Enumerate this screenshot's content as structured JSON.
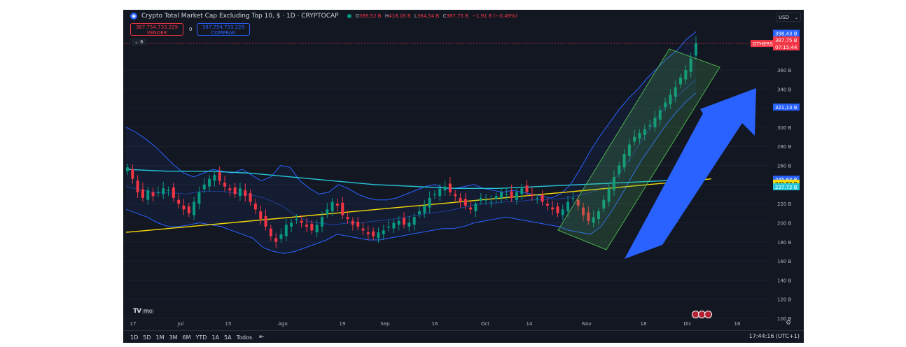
{
  "header": {
    "logo_glyph": "◉",
    "title": "Crypto Total Market Cap Excluding Top 10, $ · 1D · CRYPTOCAP",
    "ohlc": {
      "o_label": "O",
      "o": "389,52 B",
      "h_label": "H",
      "h": "418,16 B",
      "l_label": "L",
      "l": "364,54 B",
      "c_label": "C",
      "c": "387,75 B",
      "change": "−1,91 B (−0,49%)"
    },
    "status_color": "#089981"
  },
  "trade": {
    "sell_price": "387.754.733.229",
    "sell_label": "VENDER",
    "spread": "0",
    "buy_price": "387.754.733.229",
    "buy_label": "COMPRAR"
  },
  "indicators_toggle": {
    "label": "6",
    "icon": "chevron-down-icon"
  },
  "currency": {
    "label": "USD",
    "icon": "chevron-down-icon"
  },
  "chart_data": {
    "type": "line",
    "symbol": "OTHERS",
    "price_axis": {
      "unit": "B",
      "ticks": [
        "360 B",
        "340 B",
        "320 B",
        "300 B",
        "280 B",
        "260 B",
        "240 B",
        "220 B",
        "200 B",
        "180 B",
        "160 B",
        "140 B",
        "120 B",
        "100 B"
      ],
      "tick_values": [
        360,
        340,
        320,
        300,
        280,
        260,
        240,
        220,
        200,
        180,
        160,
        140,
        120,
        100
      ]
    },
    "time_axis": {
      "ticks": [
        "17",
        "Jul",
        "15",
        "Ago",
        "19",
        "Sep",
        "16",
        "Oct",
        "14",
        "Nov",
        "18",
        "Dic",
        "16"
      ]
    },
    "price_labels": [
      {
        "text": "398,43 B",
        "value": 398.43,
        "color": "#2962ff"
      },
      {
        "text": "387,75 B",
        "value": 387.75,
        "color": "#f23645",
        "tag": "OTHERS",
        "countdown": "07:15:44"
      },
      {
        "text": "321,13 B",
        "value": 321.13,
        "color": "#2962ff"
      },
      {
        "text": "245,63 B",
        "value": 245.63,
        "color": "#2962ff"
      },
      {
        "text": "241,52 B",
        "value": 241.52,
        "color": "#f5d90a"
      },
      {
        "text": "237,72 B",
        "value": 237.72,
        "color": "#26c6da"
      }
    ],
    "close_series": [
      258,
      246,
      232,
      226,
      234,
      228,
      232,
      236,
      234,
      226,
      220,
      214,
      210,
      222,
      232,
      240,
      246,
      250,
      244,
      238,
      234,
      230,
      236,
      228,
      222,
      214,
      204,
      196,
      186,
      180,
      188,
      198,
      200,
      204,
      200,
      196,
      192,
      198,
      206,
      214,
      222,
      218,
      208,
      204,
      198,
      196,
      192,
      188,
      186,
      190,
      192,
      196,
      200,
      202,
      198,
      200,
      206,
      212,
      218,
      226,
      230,
      236,
      238,
      232,
      228,
      222,
      218,
      214,
      220,
      226,
      224,
      222,
      228,
      232,
      230,
      226,
      232,
      236,
      232,
      228,
      226,
      222,
      218,
      214,
      210,
      214,
      222,
      226,
      218,
      208,
      202,
      206,
      212,
      224,
      236,
      248,
      260,
      272,
      282,
      290,
      294,
      298,
      302,
      310,
      318,
      326,
      334,
      342,
      352,
      360,
      372,
      388
    ],
    "bb_mid_series": [
      238,
      236,
      234,
      232,
      232,
      231,
      231,
      230,
      232,
      233,
      233,
      233,
      232,
      231,
      230,
      228,
      226,
      222,
      218,
      212,
      206,
      202,
      200,
      199,
      198,
      199,
      200,
      200,
      201,
      202,
      203,
      204,
      205,
      207,
      208,
      210,
      211,
      212,
      214,
      216,
      218,
      220,
      220,
      221,
      222,
      222,
      223,
      224,
      224,
      225,
      225,
      226,
      228,
      230,
      232,
      236,
      242,
      250,
      262,
      276,
      290,
      304,
      316,
      326,
      334,
      342,
      350
    ],
    "bb_upper_series": [
      300,
      295,
      288,
      280,
      270,
      260,
      252,
      248,
      252,
      256,
      254,
      252,
      256,
      250,
      244,
      248,
      260,
      258,
      244,
      236,
      230,
      232,
      240,
      236,
      230,
      226,
      224,
      224,
      226,
      230,
      234,
      238,
      240,
      236,
      236,
      238,
      240,
      236,
      234,
      232,
      234,
      232,
      230,
      228,
      226,
      230,
      240,
      256,
      274,
      290,
      304,
      318,
      330,
      340,
      352,
      362,
      372,
      380,
      392,
      400
    ],
    "bb_lower_series": [
      214,
      210,
      206,
      200,
      196,
      196,
      198,
      200,
      198,
      196,
      192,
      188,
      184,
      174,
      170,
      168,
      170,
      174,
      178,
      182,
      188,
      186,
      184,
      182,
      182,
      184,
      186,
      188,
      190,
      192,
      194,
      194,
      196,
      200,
      202,
      204,
      206,
      204,
      202,
      200,
      198,
      196,
      192,
      190,
      188,
      196,
      212,
      230,
      250,
      268,
      284,
      300,
      314,
      326,
      336
    ],
    "ma200_series": [
      256,
      255,
      254,
      254,
      254,
      253,
      252,
      250,
      248,
      246,
      244,
      242,
      240,
      239,
      238,
      237,
      236,
      236,
      236,
      237,
      238,
      239,
      240,
      241,
      242,
      243,
      244,
      245,
      246
    ],
    "ma_yellow_series": [
      190,
      192,
      194,
      196,
      198,
      200,
      202,
      204,
      206,
      208,
      210,
      212,
      214,
      216,
      218,
      220,
      222,
      224,
      226,
      228,
      230,
      232,
      234,
      236,
      238,
      240,
      242,
      244,
      246
    ],
    "channel_color": "#4caf50",
    "arrow_color": "#2962ff",
    "up_color": "#089981",
    "down_color": "#f23645"
  },
  "bottom_bar": {
    "ranges": [
      "1D",
      "5D",
      "1M",
      "3M",
      "6M",
      "YTD",
      "1A",
      "5A",
      "Todos"
    ],
    "calendar_icon": "calendar-icon",
    "clock": "17:44:16 (UTC+1)"
  },
  "watermark": {
    "logo": "TV",
    "badge": "PRO"
  }
}
